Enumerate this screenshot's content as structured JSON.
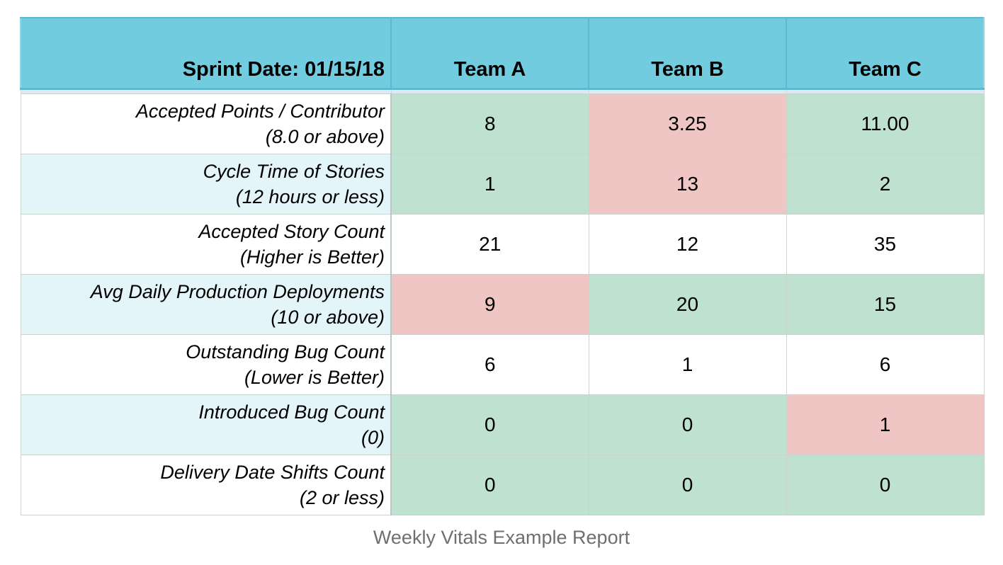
{
  "header": {
    "sprint_label": "Sprint Date: 01/15/18",
    "teams": [
      "Team A",
      "Team B",
      "Team C"
    ]
  },
  "rows": [
    {
      "metric": "Accepted Points / Contributor",
      "target": "(8.0 or above)",
      "values": [
        "8",
        "3.25",
        "11.00"
      ],
      "status": [
        "good",
        "bad",
        "good"
      ]
    },
    {
      "metric": "Cycle Time of Stories",
      "target": "(12 hours or less)",
      "values": [
        "1",
        "13",
        "2"
      ],
      "status": [
        "good",
        "bad",
        "good"
      ]
    },
    {
      "metric": "Accepted Story Count",
      "target": "(Higher is Better)",
      "values": [
        "21",
        "12",
        "35"
      ],
      "status": [
        "neutral",
        "neutral",
        "neutral"
      ]
    },
    {
      "metric": "Avg Daily Production Deployments",
      "target": "(10 or above)",
      "values": [
        "9",
        "20",
        "15"
      ],
      "status": [
        "bad",
        "good",
        "good"
      ]
    },
    {
      "metric": "Outstanding Bug Count",
      "target": "(Lower is Better)",
      "values": [
        "6",
        "1",
        "6"
      ],
      "status": [
        "neutral",
        "neutral",
        "neutral"
      ]
    },
    {
      "metric": "Introduced Bug Count",
      "target": "(0)",
      "values": [
        "0",
        "0",
        "1"
      ],
      "status": [
        "good",
        "good",
        "bad"
      ]
    },
    {
      "metric": "Delivery Date Shifts Count",
      "target": "(2 or less)",
      "values": [
        "0",
        "0",
        "0"
      ],
      "status": [
        "good",
        "good",
        "good"
      ]
    }
  ],
  "colors": {
    "header_bg": "#72cce0",
    "good": "#bfe1cf",
    "bad": "#efc6c3",
    "alt_label_bg": "#e3f5f9"
  },
  "caption": "Weekly Vitals Example Report"
}
